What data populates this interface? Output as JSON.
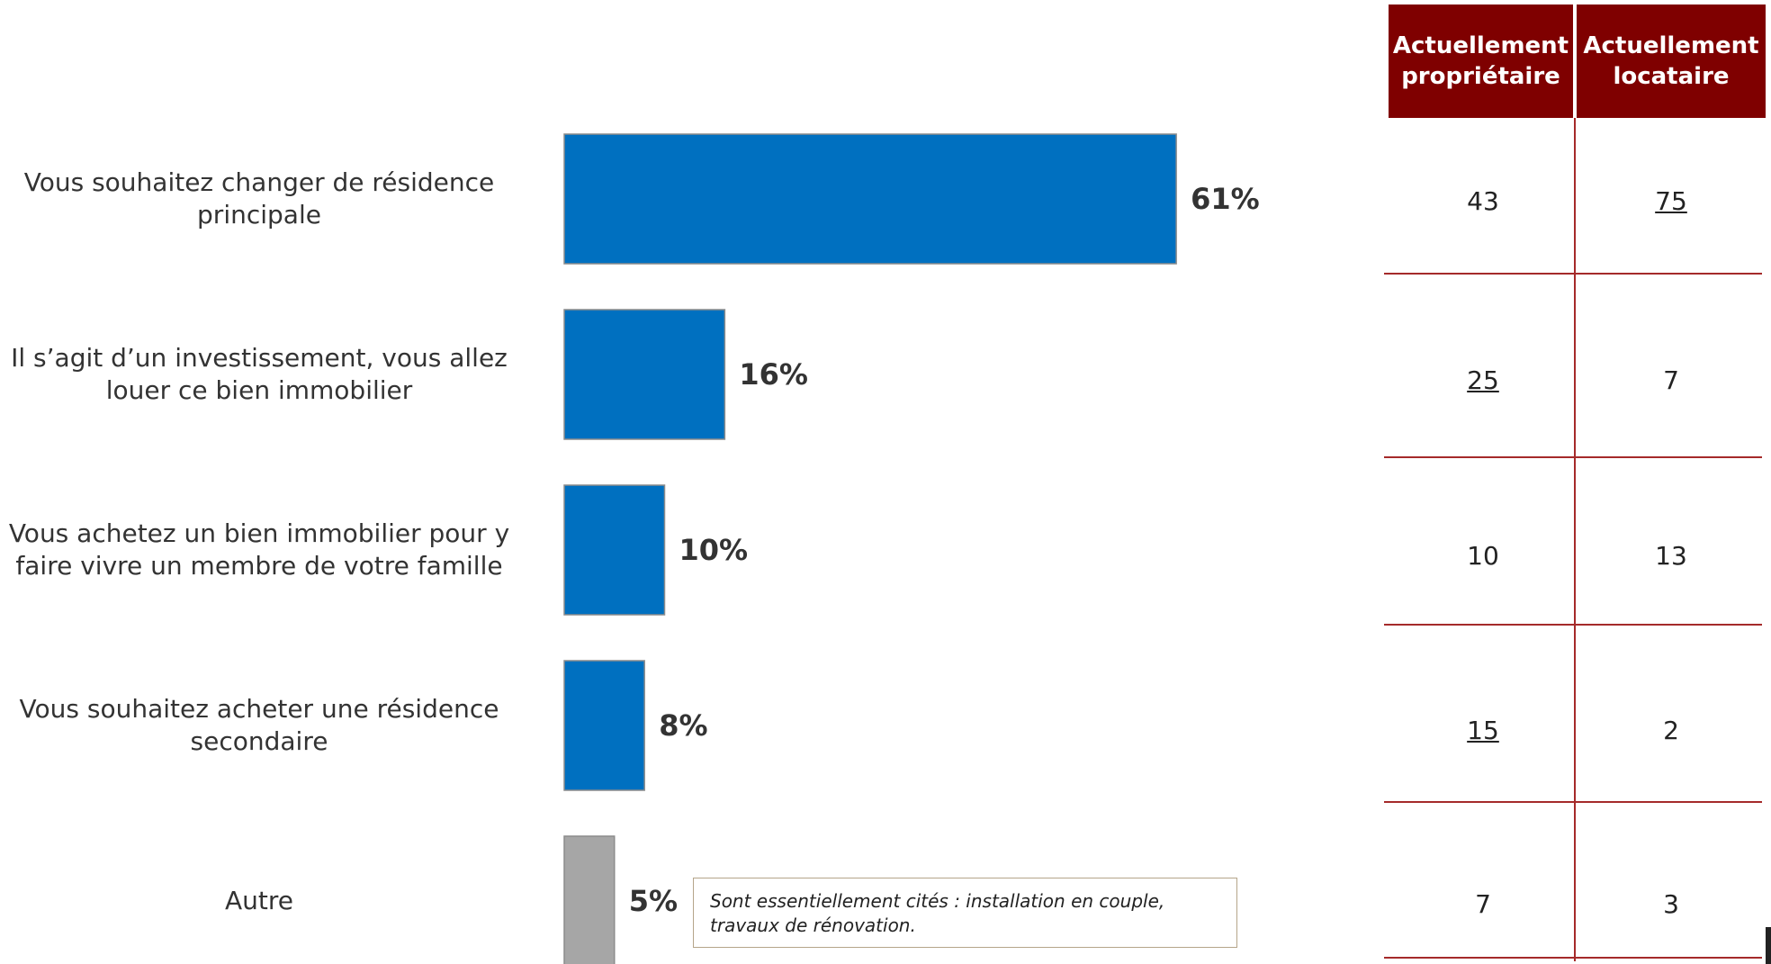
{
  "chart_data": {
    "type": "bar",
    "orientation": "horizontal",
    "categories": [
      "Vous souhaitez changer de résidence\nprincipale",
      "Il s’agit d’un investissement, vous allez\nlouer ce bien immobilier",
      "Vous achetez un bien immobilier pour y\nfaire vivre un membre de votre famille",
      "Vous souhaitez acheter une résidence\nsecondaire",
      "Autre"
    ],
    "values": [
      61,
      16,
      10,
      8,
      5
    ],
    "value_labels": [
      "61%",
      "16%",
      "10%",
      "8%",
      "5%"
    ],
    "colors": [
      "#0070c0",
      "#0070c0",
      "#0070c0",
      "#0070c0",
      "#a6a6a6"
    ],
    "xlim": [
      0,
      100
    ],
    "note": "Sont essentiellement cités : installation en couple,\ntravaux de rénovation."
  },
  "table": {
    "header_color": "#7f0000",
    "line_color": "#a52a2a",
    "columns": [
      "Actuellement propriétaire",
      "Actuellement locataire"
    ],
    "rows": [
      [
        {
          "v": "43",
          "u": false
        },
        {
          "v": "75",
          "u": true
        }
      ],
      [
        {
          "v": "25",
          "u": true
        },
        {
          "v": "7",
          "u": false
        }
      ],
      [
        {
          "v": "10",
          "u": false
        },
        {
          "v": "13",
          "u": false
        }
      ],
      [
        {
          "v": "15",
          "u": true
        },
        {
          "v": "2",
          "u": false
        }
      ],
      [
        {
          "v": "7",
          "u": false
        },
        {
          "v": "3",
          "u": false
        }
      ]
    ]
  }
}
